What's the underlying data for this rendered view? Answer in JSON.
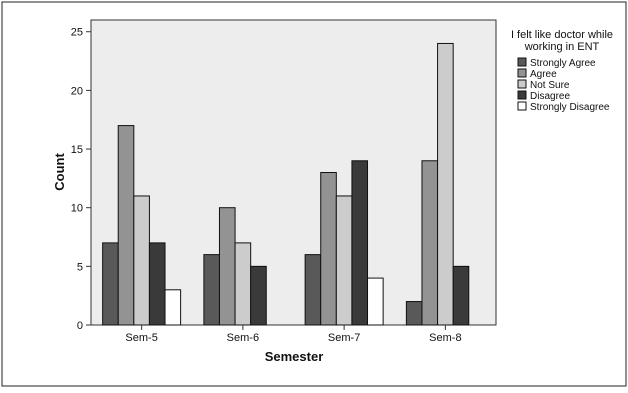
{
  "chart_data": {
    "type": "bar",
    "title": "",
    "xlabel": "Semester",
    "ylabel": "Count",
    "categories": [
      "Sem-5",
      "Sem-6",
      "Sem-7",
      "Sem-8"
    ],
    "ylim": [
      0,
      26
    ],
    "yticks": [
      0,
      5,
      10,
      15,
      20,
      25
    ],
    "grid": false,
    "legend_title": "I felt like doctor while working in ENT",
    "legend_title_lines": [
      "I felt like doctor while",
      "working in ENT"
    ],
    "legend_position": "right",
    "series": [
      {
        "name": "Strongly Agree",
        "color": "#595959",
        "values": [
          7,
          6,
          6,
          2
        ]
      },
      {
        "name": "Agree",
        "color": "#939393",
        "values": [
          17,
          10,
          13,
          14
        ]
      },
      {
        "name": "Not Sure",
        "color": "#cccccc",
        "values": [
          11,
          7,
          11,
          24
        ]
      },
      {
        "name": "Disagree",
        "color": "#3a3a3a",
        "values": [
          7,
          5,
          14,
          5
        ]
      },
      {
        "name": "Strongly Disagree",
        "color": "#ffffff",
        "values": [
          3,
          0,
          4,
          0
        ]
      }
    ],
    "plot_background": "#ededed"
  }
}
